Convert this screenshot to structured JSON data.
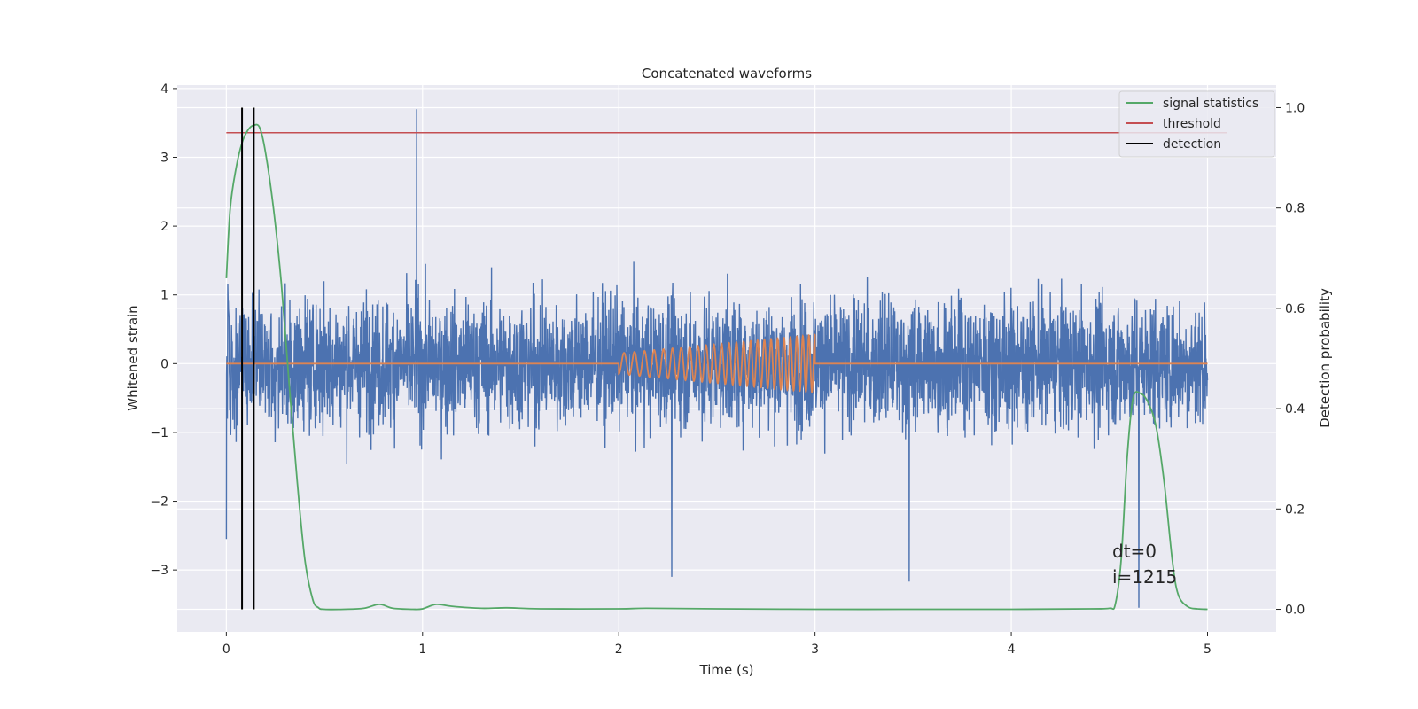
{
  "chart_data": {
    "type": "line",
    "title": "Concatenated waveforms",
    "xlabel": "Time (s)",
    "ylabel": "Whitened strain",
    "y2label": "Detection probability",
    "xlim": [
      -0.25,
      5.35
    ],
    "ylim": [
      -3.9,
      4.05
    ],
    "y2lim": [
      -0.045,
      1.045
    ],
    "xticks": [
      0,
      1,
      2,
      3,
      4,
      5
    ],
    "yticks": [
      -3,
      -2,
      -1,
      0,
      1,
      2,
      3,
      4
    ],
    "y2ticks": [
      0.0,
      0.2,
      0.4,
      0.6,
      0.8,
      1.0
    ],
    "xtick_labels": [
      "0",
      "1",
      "2",
      "3",
      "4",
      "5"
    ],
    "ytick_labels": [
      "−3",
      "−2",
      "−1",
      "0",
      "1",
      "2",
      "3",
      "4"
    ],
    "y2tick_labels": [
      "0.0",
      "0.2",
      "0.4",
      "0.6",
      "0.8",
      "1.0"
    ],
    "grid": true,
    "background": "#eaeaf2",
    "legend_position": "top-right",
    "legend": [
      {
        "label": "signal statistics",
        "color": "#55a868"
      },
      {
        "label": "threshold",
        "color": "#c44e52"
      },
      {
        "label": "detection",
        "color": "#000000"
      }
    ],
    "series": [
      {
        "color": "#4c72b0",
        "axis": "left",
        "t_range": [
          0,
          5
        ],
        "noise_envelope": {
          "typical_range": [
            -1.5,
            1.5
          ],
          "peaks": [
            [
              0.97,
              3.7
            ],
            [
              0.0,
              -2.55
            ],
            [
              2.27,
              -3.1
            ],
            [
              3.48,
              -3.17
            ],
            [
              4.65,
              -3.55
            ]
          ]
        }
      },
      {
        "color": "#dd8452",
        "axis": "left",
        "chirp": {
          "t_start": 2.0,
          "t_end": 3.0,
          "amplitude_start": 0.15,
          "amplitude_end": 0.42,
          "freq_start": 18,
          "freq_end": 33
        }
      },
      {
        "name": "signal statistics",
        "color": "#55a868",
        "axis": "right",
        "x": [
          0.0,
          0.02,
          0.05,
          0.08,
          0.11,
          0.14,
          0.17,
          0.2,
          0.24,
          0.28,
          0.32,
          0.36,
          0.4,
          0.44,
          0.47,
          0.5,
          0.6,
          0.7,
          0.78,
          0.85,
          0.95,
          1.0,
          1.07,
          1.15,
          1.3,
          1.43,
          1.6,
          2.0,
          2.14,
          2.5,
          3.0,
          3.5,
          4.0,
          4.4,
          4.5,
          4.53,
          4.56,
          4.59,
          4.62,
          4.66,
          4.7,
          4.74,
          4.78,
          4.82,
          4.85,
          4.9,
          4.95,
          5.0
        ],
        "y": [
          0.66,
          0.8,
          0.88,
          0.93,
          0.955,
          0.965,
          0.96,
          0.91,
          0.8,
          0.65,
          0.45,
          0.26,
          0.1,
          0.02,
          0.003,
          0.0,
          0.0,
          0.002,
          0.01,
          0.002,
          0.0,
          0.001,
          0.01,
          0.006,
          0.002,
          0.003,
          0.001,
          0.001,
          0.002,
          0.001,
          0.0,
          0.0,
          0.0,
          0.001,
          0.002,
          0.01,
          0.1,
          0.3,
          0.42,
          0.43,
          0.41,
          0.36,
          0.25,
          0.1,
          0.03,
          0.005,
          0.001,
          0.0
        ]
      },
      {
        "name": "threshold",
        "color": "#c44e52",
        "axis": "right",
        "x": [
          0,
          5.1
        ],
        "y": [
          0.95,
          0.95
        ]
      },
      {
        "name": "detection",
        "color": "#000000",
        "axis": "right",
        "type": "vlines",
        "x": [
          0.08,
          0.14
        ],
        "y_range": [
          0.0,
          1.0
        ]
      }
    ],
    "annotations": [
      {
        "text": "dt=0",
        "x": 4.5,
        "y": -2.85
      },
      {
        "text": "i=1215",
        "x": 4.5,
        "y": -3.2
      }
    ]
  }
}
